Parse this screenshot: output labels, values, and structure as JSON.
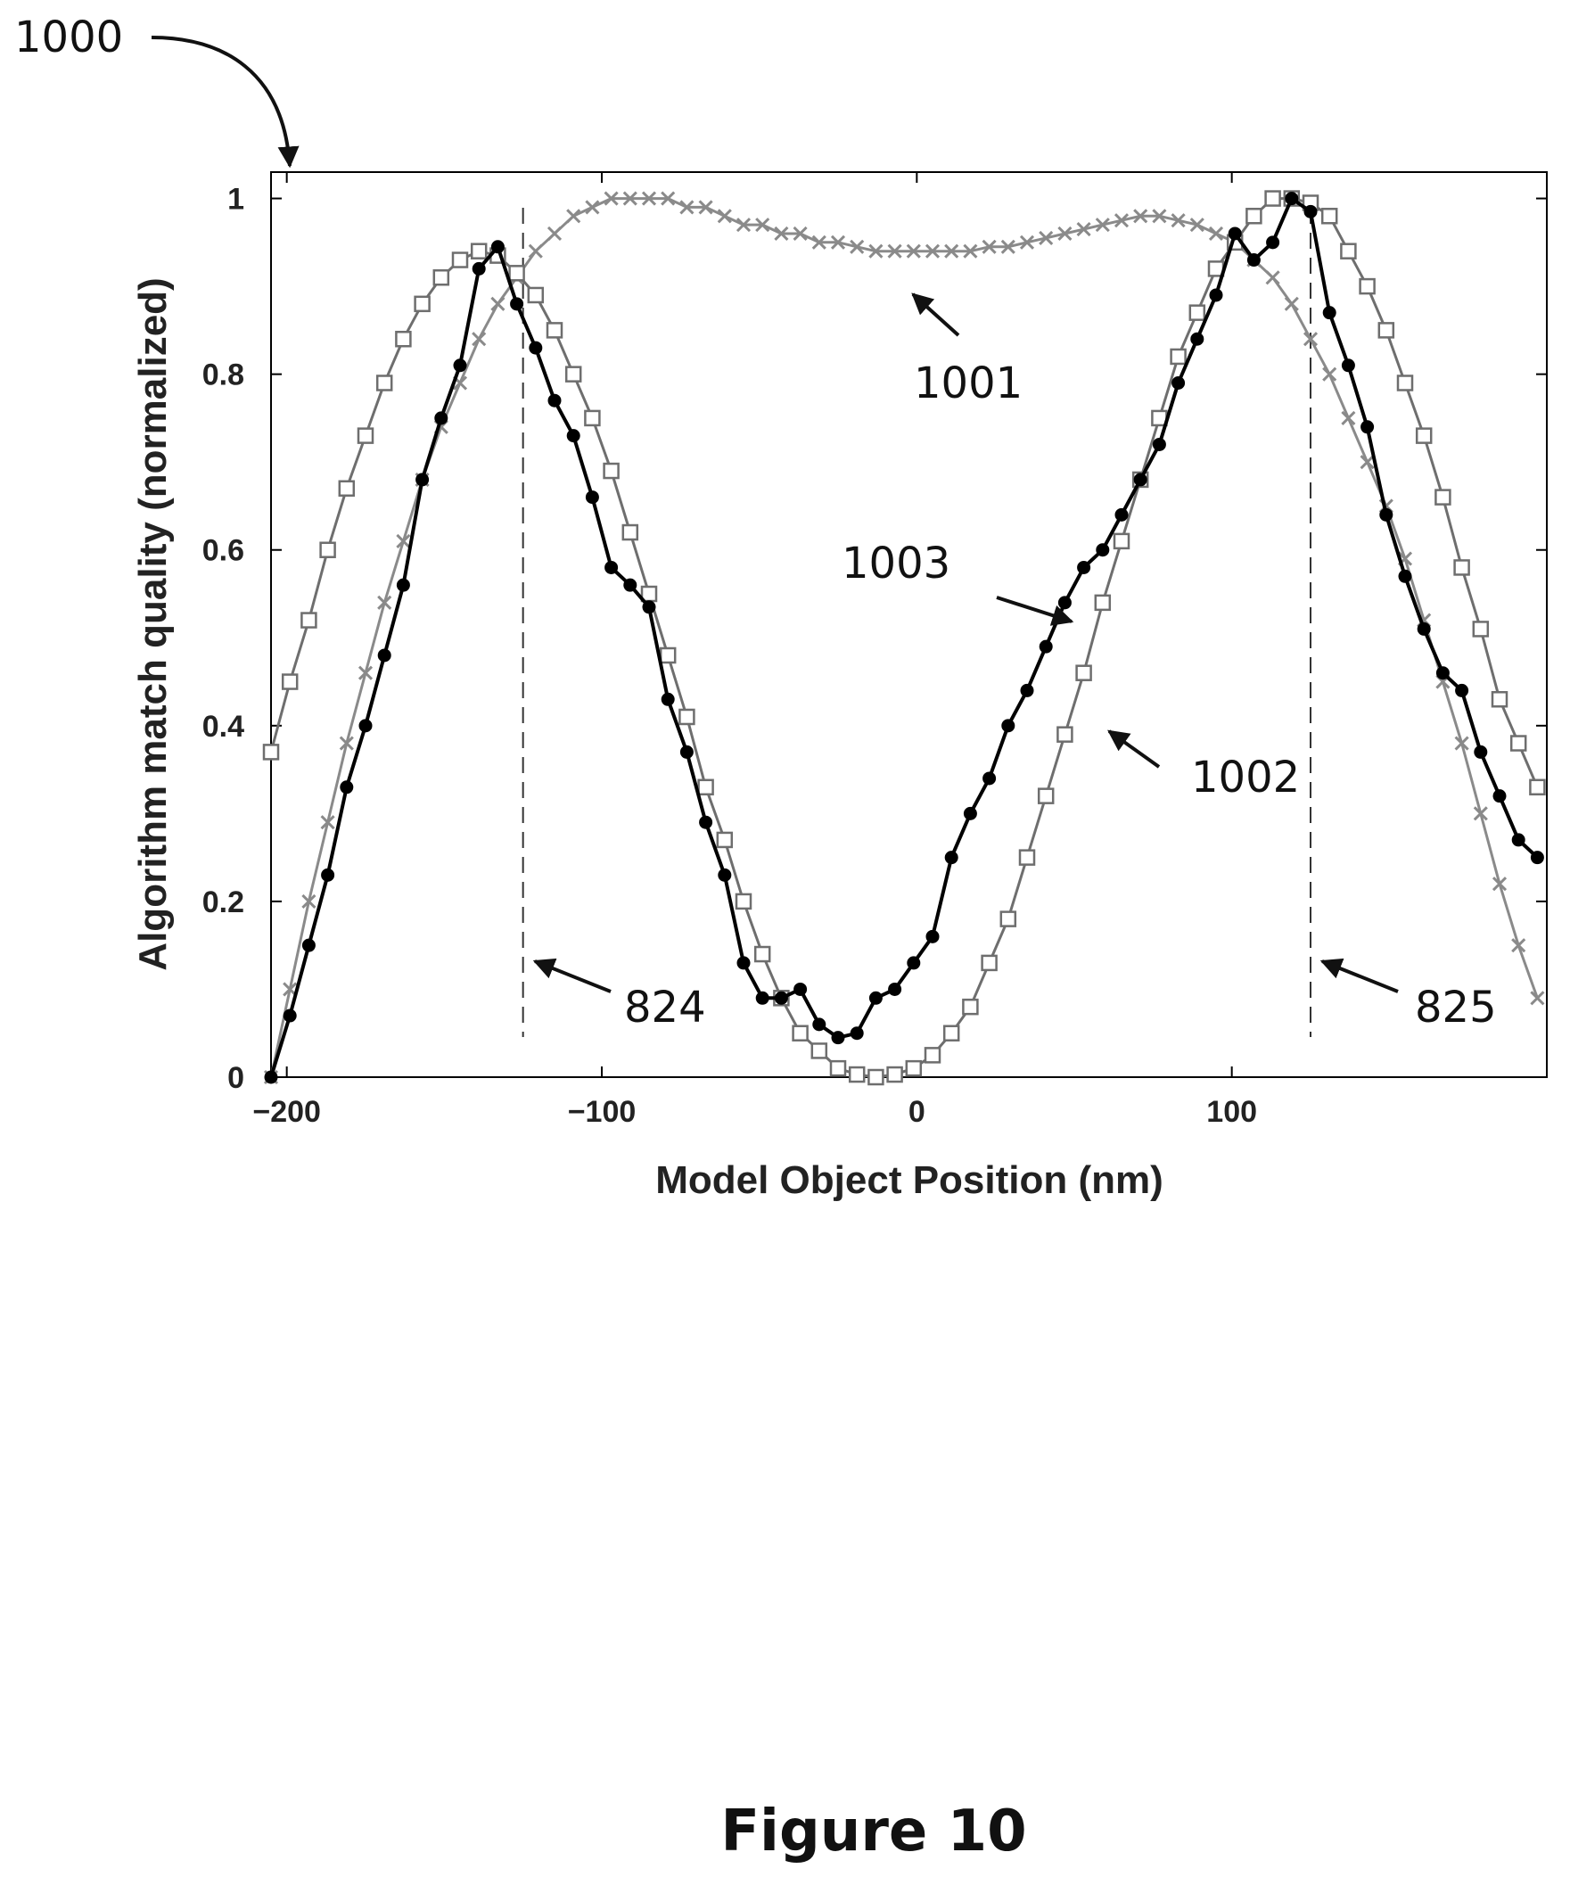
{
  "figure_ref": "1000",
  "caption": "Figure 10",
  "colors": {
    "series_1001": "#8a8a8a",
    "series_1002": "#6e6e6e",
    "series_1003": "#000000",
    "frame": "#000000",
    "ink": "#111111"
  },
  "chart_data": {
    "type": "line",
    "title": "",
    "xlabel": "Model Object Position (nm)",
    "ylabel": "Algorithm match quality (normalized)",
    "xlim": [
      -205,
      200
    ],
    "ylim": [
      0,
      1.03
    ],
    "x_tick_labels": [
      "−200",
      "−100",
      "0",
      "100"
    ],
    "y_tick_labels": [
      "0",
      "0.2",
      "0.4",
      "0.6",
      "0.8",
      "1"
    ],
    "x_ticks": [
      -200,
      -100,
      0,
      100
    ],
    "y_ticks": [
      0,
      0.2,
      0.4,
      0.6,
      0.8,
      1
    ],
    "grid": false,
    "reference_lines": [
      {
        "x": -125,
        "style": "dashed",
        "label": "824"
      },
      {
        "x": 125,
        "style": "dashed",
        "label": "825"
      }
    ],
    "series": [
      {
        "name": "1001",
        "marker": "x",
        "x": [
          -205,
          -199,
          -193,
          -187,
          -181,
          -175,
          -169,
          -163,
          -157,
          -151,
          -145,
          -139,
          -133,
          -127,
          -121,
          -115,
          -109,
          -103,
          -97,
          -91,
          -85,
          -79,
          -73,
          -67,
          -61,
          -55,
          -49,
          -43,
          -37,
          -31,
          -25,
          -19,
          -13,
          -7,
          -1,
          5,
          11,
          17,
          23,
          29,
          35,
          41,
          47,
          53,
          59,
          65,
          71,
          77,
          83,
          89,
          95,
          101,
          107,
          113,
          119,
          125,
          131,
          137,
          143,
          149,
          155,
          161,
          167,
          173,
          179,
          185,
          191,
          197
        ],
        "y": [
          0.0,
          0.1,
          0.2,
          0.29,
          0.38,
          0.46,
          0.54,
          0.61,
          0.68,
          0.74,
          0.79,
          0.84,
          0.88,
          0.91,
          0.94,
          0.96,
          0.98,
          0.99,
          1.0,
          1.0,
          1.0,
          1.0,
          0.99,
          0.99,
          0.98,
          0.97,
          0.97,
          0.96,
          0.96,
          0.95,
          0.95,
          0.945,
          0.94,
          0.94,
          0.94,
          0.94,
          0.94,
          0.94,
          0.945,
          0.945,
          0.95,
          0.955,
          0.96,
          0.965,
          0.97,
          0.975,
          0.98,
          0.98,
          0.975,
          0.97,
          0.96,
          0.95,
          0.93,
          0.91,
          0.88,
          0.84,
          0.8,
          0.75,
          0.7,
          0.65,
          0.59,
          0.52,
          0.45,
          0.38,
          0.3,
          0.22,
          0.15,
          0.09
        ]
      },
      {
        "name": "1002",
        "marker": "square",
        "x": [
          -205,
          -199,
          -193,
          -187,
          -181,
          -175,
          -169,
          -163,
          -157,
          -151,
          -145,
          -139,
          -133,
          -127,
          -121,
          -115,
          -109,
          -103,
          -97,
          -91,
          -85,
          -79,
          -73,
          -67,
          -61,
          -55,
          -49,
          -43,
          -37,
          -31,
          -25,
          -19,
          -13,
          -7,
          -1,
          5,
          11,
          17,
          23,
          29,
          35,
          41,
          47,
          53,
          59,
          65,
          71,
          77,
          83,
          89,
          95,
          101,
          107,
          113,
          119,
          125,
          131,
          137,
          143,
          149,
          155,
          161,
          167,
          173,
          179,
          185,
          191,
          197
        ],
        "y": [
          0.37,
          0.45,
          0.52,
          0.6,
          0.67,
          0.73,
          0.79,
          0.84,
          0.88,
          0.91,
          0.93,
          0.94,
          0.935,
          0.915,
          0.89,
          0.85,
          0.8,
          0.75,
          0.69,
          0.62,
          0.55,
          0.48,
          0.41,
          0.33,
          0.27,
          0.2,
          0.14,
          0.09,
          0.05,
          0.03,
          0.01,
          0.003,
          0.0,
          0.003,
          0.01,
          0.025,
          0.05,
          0.08,
          0.13,
          0.18,
          0.25,
          0.32,
          0.39,
          0.46,
          0.54,
          0.61,
          0.68,
          0.75,
          0.82,
          0.87,
          0.92,
          0.95,
          0.98,
          1.0,
          1.0,
          0.995,
          0.98,
          0.94,
          0.9,
          0.85,
          0.79,
          0.73,
          0.66,
          0.58,
          0.51,
          0.43,
          0.38,
          0.33
        ]
      },
      {
        "name": "1003",
        "marker": "filled-circle",
        "x": [
          -205,
          -199,
          -193,
          -187,
          -181,
          -175,
          -169,
          -163,
          -157,
          -151,
          -145,
          -139,
          -133,
          -127,
          -121,
          -115,
          -109,
          -103,
          -97,
          -91,
          -85,
          -79,
          -73,
          -67,
          -61,
          -55,
          -49,
          -43,
          -37,
          -31,
          -25,
          -19,
          -13,
          -7,
          -1,
          5,
          11,
          17,
          23,
          29,
          35,
          41,
          47,
          53,
          59,
          65,
          71,
          77,
          83,
          89,
          95,
          101,
          107,
          113,
          119,
          125,
          131,
          137,
          143,
          149,
          155,
          161,
          167,
          173,
          179,
          185,
          191,
          197
        ],
        "y": [
          0.0,
          0.07,
          0.15,
          0.23,
          0.33,
          0.4,
          0.48,
          0.56,
          0.68,
          0.75,
          0.81,
          0.92,
          0.945,
          0.88,
          0.83,
          0.77,
          0.73,
          0.66,
          0.58,
          0.56,
          0.535,
          0.43,
          0.37,
          0.29,
          0.23,
          0.13,
          0.09,
          0.09,
          0.1,
          0.06,
          0.045,
          0.05,
          0.09,
          0.1,
          0.13,
          0.16,
          0.25,
          0.3,
          0.34,
          0.4,
          0.44,
          0.49,
          0.54,
          0.58,
          0.6,
          0.64,
          0.68,
          0.72,
          0.79,
          0.84,
          0.89,
          0.96,
          0.93,
          0.95,
          1.0,
          0.985,
          0.87,
          0.81,
          0.74,
          0.64,
          0.57,
          0.51,
          0.46,
          0.44,
          0.37,
          0.32,
          0.27,
          0.25
        ]
      }
    ]
  },
  "callouts": [
    {
      "label": "1001",
      "target_series": "1001"
    },
    {
      "label": "1003",
      "target_series": "1003"
    },
    {
      "label": "1002",
      "target_series": "1002"
    },
    {
      "label": "824"
    },
    {
      "label": "825"
    }
  ]
}
